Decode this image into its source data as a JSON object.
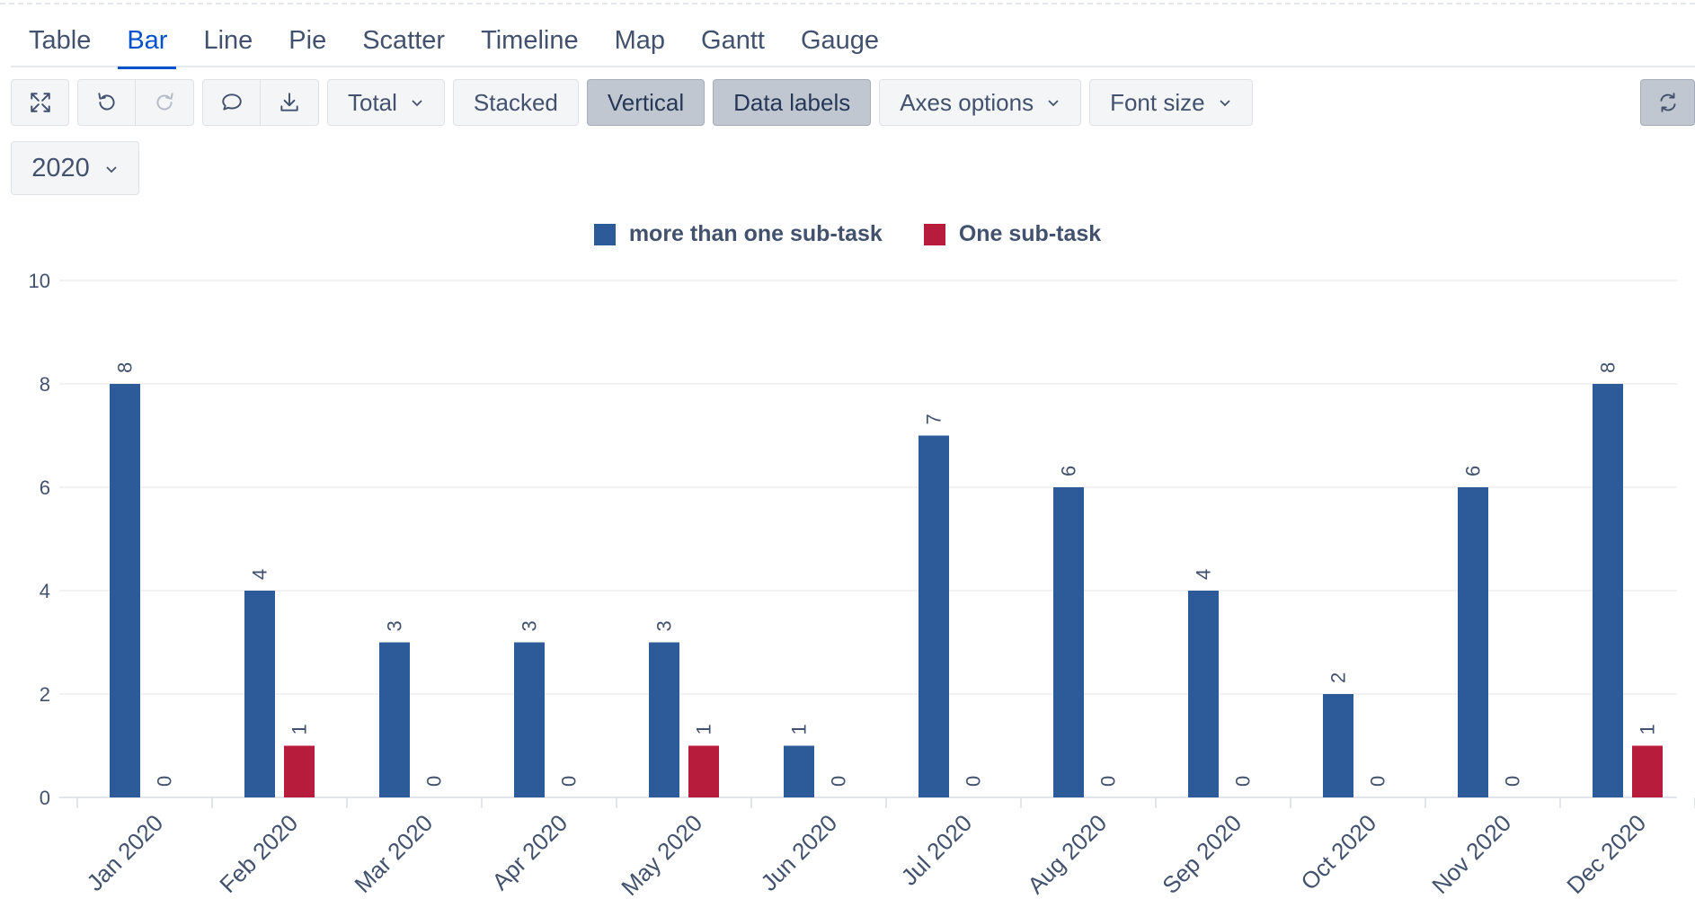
{
  "tabs": [
    {
      "label": "Table"
    },
    {
      "label": "Bar"
    },
    {
      "label": "Line"
    },
    {
      "label": "Pie"
    },
    {
      "label": "Scatter"
    },
    {
      "label": "Timeline"
    },
    {
      "label": "Map"
    },
    {
      "label": "Gantt"
    },
    {
      "label": "Gauge"
    }
  ],
  "active_tab": "Bar",
  "toolbar": {
    "expand_icon": "expand-icon",
    "undo_icon": "undo-icon",
    "redo_icon": "redo-icon",
    "comment_icon": "comment-icon",
    "download_icon": "download-icon",
    "total_label": "Total",
    "stacked_label": "Stacked",
    "vertical_label": "Vertical",
    "data_labels_label": "Data labels",
    "axes_options_label": "Axes options",
    "font_size_label": "Font size",
    "refresh_icon": "refresh-icon"
  },
  "filters": {
    "year": "2020"
  },
  "colors": {
    "accent": "#0052cc",
    "series_1": "#2d5b9a",
    "series_2": "#b81c3c"
  },
  "chart_data": {
    "type": "bar",
    "categories": [
      "Jan 2020",
      "Feb 2020",
      "Mar 2020",
      "Apr 2020",
      "May 2020",
      "Jun 2020",
      "Jul 2020",
      "Aug 2020",
      "Sep 2020",
      "Oct 2020",
      "Nov 2020",
      "Dec 2020"
    ],
    "series": [
      {
        "name": "more than one sub-task",
        "color": "#2d5b9a",
        "values": [
          8,
          4,
          3,
          3,
          3,
          1,
          7,
          6,
          4,
          2,
          6,
          8
        ]
      },
      {
        "name": "One sub-task",
        "color": "#b81c3c",
        "values": [
          0,
          1,
          0,
          0,
          1,
          0,
          0,
          0,
          0,
          0,
          0,
          1
        ]
      }
    ],
    "title": "",
    "xlabel": "",
    "ylabel": "",
    "ylim": [
      0,
      10
    ],
    "yticks": [
      0,
      2,
      4,
      6,
      8,
      10
    ],
    "grid": true,
    "legend": "top-center",
    "data_labels": true
  }
}
